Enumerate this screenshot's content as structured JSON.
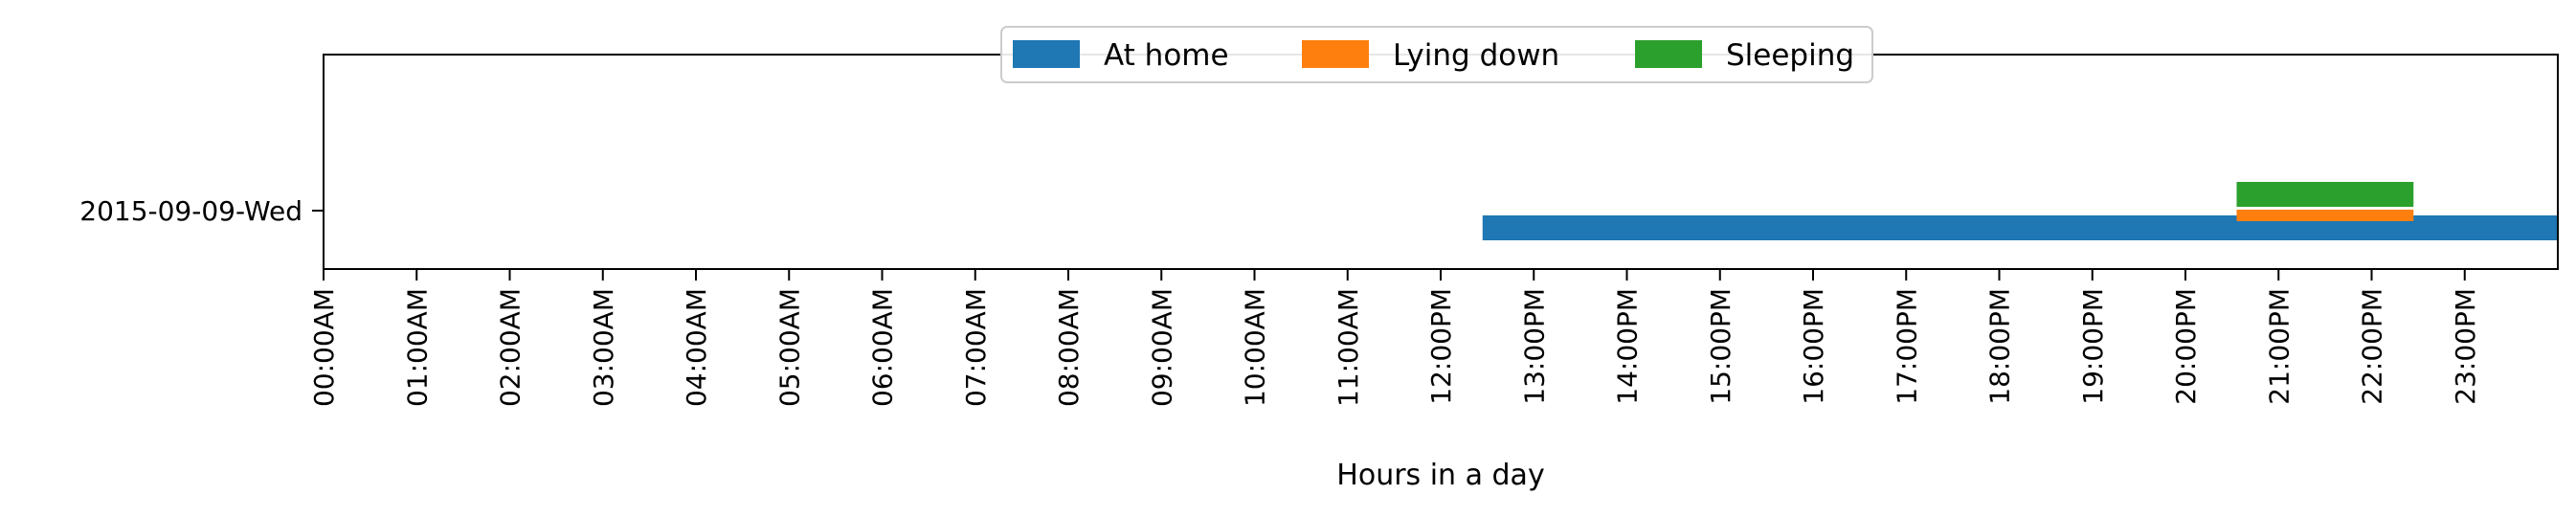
{
  "chart_data": {
    "type": "timeline",
    "xlabel": "Hours in a day",
    "xlim": [
      0,
      24
    ],
    "x_ticks": [
      "00:00AM",
      "01:00AM",
      "02:00AM",
      "03:00AM",
      "04:00AM",
      "05:00AM",
      "06:00AM",
      "07:00AM",
      "08:00AM",
      "09:00AM",
      "10:00AM",
      "11:00AM",
      "12:00PM",
      "13:00PM",
      "14:00PM",
      "15:00PM",
      "16:00PM",
      "17:00PM",
      "18:00PM",
      "19:00PM",
      "20:00PM",
      "21:00PM",
      "22:00PM",
      "23:00PM"
    ],
    "categories": [
      "2015-09-09-Wed"
    ],
    "legend_placement": "upper-center",
    "series": [
      {
        "name": "At home",
        "color": "#1f77b4",
        "intervals": [
          {
            "start": 12.45,
            "end": 24.0
          }
        ]
      },
      {
        "name": "Lying down",
        "color": "#ff7f0e",
        "intervals": [
          {
            "start": 20.55,
            "end": 22.45
          }
        ]
      },
      {
        "name": "Sleeping",
        "color": "#2ca02c",
        "intervals": [
          {
            "start": 20.55,
            "end": 22.45
          }
        ]
      }
    ]
  }
}
